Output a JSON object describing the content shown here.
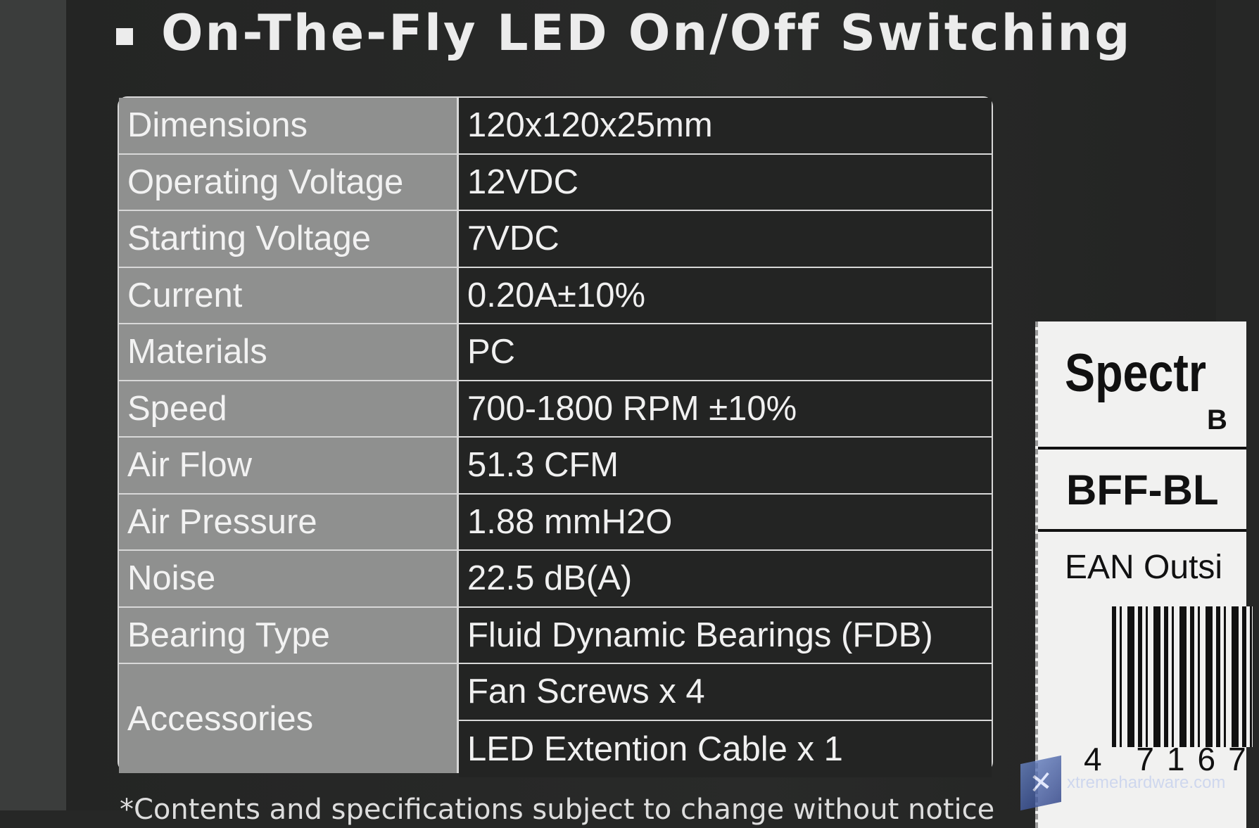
{
  "heading": "On-The-Fly LED On/Off Switching",
  "specs": [
    {
      "label": "Dimensions",
      "value": "120x120x25mm"
    },
    {
      "label": "Operating Voltage",
      "value": "12VDC"
    },
    {
      "label": "Starting Voltage",
      "value": "7VDC"
    },
    {
      "label": "Current",
      "value": "0.20A±10%"
    },
    {
      "label": "Materials",
      "value": "PC"
    },
    {
      "label": "Speed",
      "value": "700-1800 RPM ±10%"
    },
    {
      "label": "Air Flow",
      "value": "51.3 CFM"
    },
    {
      "label": "Air Pressure",
      "value": "1.88 mmH2O"
    },
    {
      "label": "Noise",
      "value": "22.5 dB(A)"
    },
    {
      "label": "Bearing Type",
      "value": "Fluid Dynamic Bearings (FDB)"
    }
  ],
  "accessories": {
    "label": "Accessories",
    "items": [
      "Fan Screws x 4",
      "LED Extention Cable x 1"
    ]
  },
  "sticker": {
    "name": "Spectr",
    "sub": "B",
    "model": "BFF-BL",
    "ean_label": "EAN Outsi",
    "ean_digits": "4 7167"
  },
  "footnote": "*Contents and specifications subject to change without notice",
  "watermark": "xtremehardware.com"
}
